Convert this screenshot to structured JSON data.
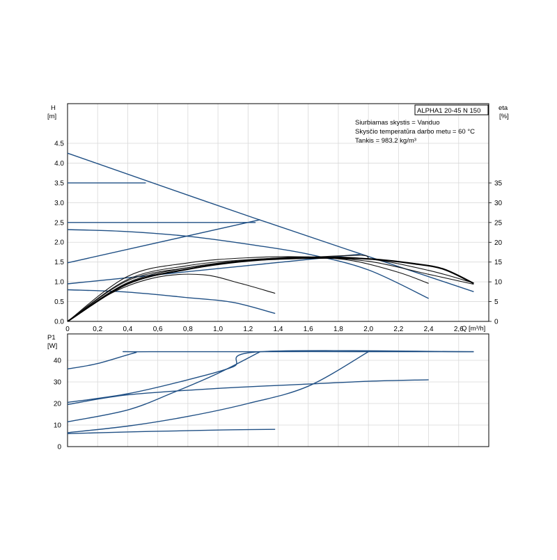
{
  "title_box": "ALPHA1 20-45 N 150",
  "info_lines": [
    "Siurbiamas skystis = Vanduo",
    "Skysčio temperatūra darbo metu = 60 °C",
    "Tankis = 983.2 kg/m³"
  ],
  "colors": {
    "head_curves": "#1f4f84",
    "efficiency_curves": "#000000",
    "grid": "#d8d8d8"
  },
  "chart_data": [
    {
      "type": "line",
      "ylabel": "H",
      "yunit": "[m]",
      "y2label": "eta",
      "y2unit": "[%]",
      "xlabel": "Q [m³/h]",
      "xlim": [
        0,
        2.8
      ],
      "ylim": [
        0,
        4.5
      ],
      "y2lim": [
        0,
        35
      ],
      "x_ticks": [
        "0",
        "0,2",
        "0,4",
        "0,6",
        "0,8",
        "1,0",
        "1,2",
        "1,4",
        "1,6",
        "1,8",
        "2,0",
        "2,2",
        "2,4",
        "2,6"
      ],
      "y_ticks": [
        "0.0",
        "0.5",
        "1.0",
        "1.5",
        "2.0",
        "2.5",
        "3.0",
        "3.5",
        "4.0",
        "4.5"
      ],
      "y2_ticks": [
        "0",
        "5",
        "10",
        "15",
        "20",
        "25",
        "30",
        "35"
      ],
      "grid": true,
      "head_series": [
        {
          "points": [
            [
              0,
              4.25
            ],
            [
              1.25,
              2.6
            ],
            [
              2.7,
              0.75
            ]
          ]
        },
        {
          "points": [
            [
              0,
              3.5
            ],
            [
              0.52,
              3.5
            ]
          ]
        },
        {
          "points": [
            [
              0,
              2.5
            ],
            [
              1.25,
              2.5
            ]
          ]
        },
        {
          "points": [
            [
              0,
              1.48
            ],
            [
              1.28,
              2.57
            ]
          ]
        },
        {
          "points": [
            [
              0,
              0.95
            ],
            [
              1.95,
              1.7
            ]
          ]
        },
        {
          "points": [
            [
              0,
              2.32
            ],
            [
              0.4,
              2.27
            ],
            [
              0.8,
              2.15
            ],
            [
              1.2,
              1.95
            ],
            [
              1.6,
              1.7
            ],
            [
              2.0,
              1.3
            ],
            [
              2.4,
              0.58
            ]
          ]
        },
        {
          "points": [
            [
              0,
              0.8
            ],
            [
              0.4,
              0.74
            ],
            [
              0.8,
              0.6
            ],
            [
              1.1,
              0.48
            ],
            [
              1.38,
              0.2
            ]
          ]
        }
      ],
      "efficiency_series": [
        {
          "points": [
            [
              0,
              0
            ],
            [
              0.3,
              7.3
            ],
            [
              0.6,
              11.2
            ],
            [
              0.9,
              11.8
            ],
            [
              1.15,
              9.6
            ],
            [
              1.38,
              7.1
            ]
          ]
        },
        {
          "points": [
            [
              0,
              0
            ],
            [
              0.4,
              11.4
            ],
            [
              0.8,
              14.8
            ],
            [
              1.2,
              16.1
            ],
            [
              1.6,
              16.3
            ],
            [
              1.9,
              15.3
            ],
            [
              2.2,
              12.4
            ],
            [
              2.4,
              9.6
            ]
          ]
        },
        {
          "points": [
            [
              0,
              0
            ],
            [
              0.4,
              10.3
            ],
            [
              0.8,
              13.6
            ],
            [
              1.2,
              15.4
            ],
            [
              1.6,
              16.2
            ],
            [
              1.95,
              16.7
            ],
            [
              2.0,
              15.9
            ]
          ]
        },
        {
          "points": [
            [
              0,
              0
            ],
            [
              0.4,
              10.6
            ],
            [
              0.8,
              14.1
            ],
            [
              1.2,
              15.6
            ],
            [
              1.6,
              16.1
            ],
            [
              2.0,
              15.2
            ],
            [
              2.4,
              11.9
            ],
            [
              2.7,
              9.4
            ]
          ]
        },
        {
          "points": [
            [
              0,
              0
            ],
            [
              0.4,
              9.8
            ],
            [
              0.8,
              13.6
            ],
            [
              1.2,
              15.5
            ],
            [
              1.6,
              16.3
            ],
            [
              2.0,
              15.8
            ],
            [
              2.4,
              12.9
            ],
            [
              2.7,
              9.7
            ]
          ]
        },
        {
          "points": [
            [
              0,
              0
            ],
            [
              0.4,
              9.5
            ],
            [
              0.8,
              13.2
            ],
            [
              1.2,
              15.3
            ],
            [
              1.6,
              16.0
            ],
            [
              2.0,
              15.8
            ],
            [
              2.3,
              14.6
            ],
            [
              2.5,
              13.2
            ],
            [
              2.7,
              9.6
            ]
          ]
        }
      ]
    },
    {
      "type": "line",
      "ylabel": "P1",
      "yunit": "[W]",
      "xlim": [
        0,
        2.8
      ],
      "ylim": [
        0,
        50
      ],
      "y_ticks": [
        "0",
        "10",
        "20",
        "30",
        "40"
      ],
      "grid": true,
      "series": [
        {
          "points": [
            [
              0,
              36
            ],
            [
              0.2,
              38.5
            ],
            [
              0.45,
              43.5
            ],
            [
              0.55,
              44
            ],
            [
              2.7,
              44
            ]
          ]
        },
        {
          "points": [
            [
              0,
              20.5
            ],
            [
              0.4,
              24.5
            ],
            [
              0.8,
              31
            ],
            [
              1.1,
              37
            ],
            [
              1.28,
              44
            ],
            [
              2.7,
              44
            ]
          ]
        },
        {
          "points": [
            [
              0,
              11.5
            ],
            [
              0.4,
              17
            ],
            [
              0.7,
              25
            ],
            [
              1.0,
              34
            ],
            [
              1.28,
              44
            ]
          ]
        },
        {
          "points": [
            [
              0,
              19.5
            ],
            [
              0.4,
              24
            ],
            [
              1.0,
              27
            ],
            [
              1.6,
              29
            ],
            [
              2.0,
              30.3
            ],
            [
              2.4,
              31
            ]
          ]
        },
        {
          "points": [
            [
              0,
              6.5
            ],
            [
              0.4,
              9.5
            ],
            [
              0.8,
              14
            ],
            [
              1.2,
              20
            ],
            [
              1.6,
              28
            ],
            [
              2.0,
              44
            ]
          ]
        },
        {
          "points": [
            [
              0,
              6
            ],
            [
              0.4,
              6.8
            ],
            [
              0.8,
              7.4
            ],
            [
              1.1,
              7.8
            ],
            [
              1.38,
              8
            ]
          ]
        }
      ]
    }
  ]
}
